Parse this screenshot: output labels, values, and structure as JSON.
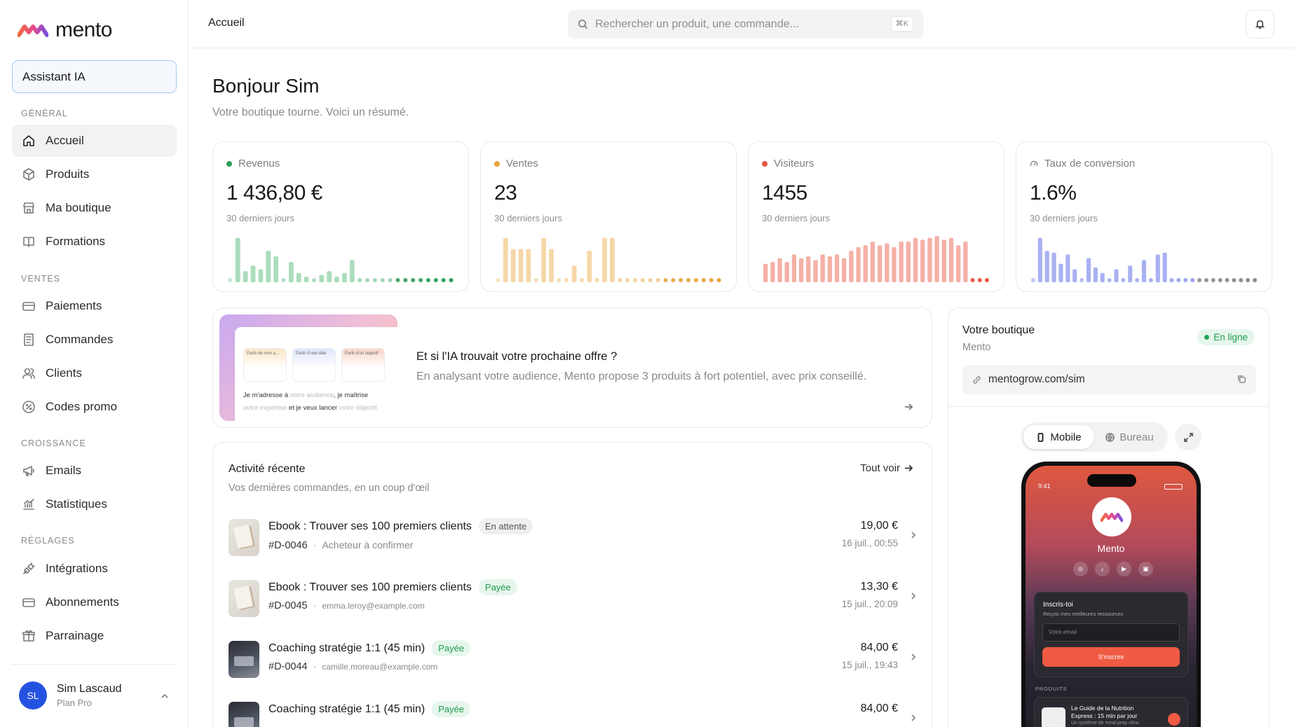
{
  "brand": {
    "name": "mento",
    "colors": {
      "pink": "#e84b8a",
      "orange": "#f16a3c",
      "purple": "#7a4de0"
    }
  },
  "sidebar": {
    "ai_button": "Assistant IA",
    "sections": [
      {
        "label": "GÉNÉRAL",
        "items": [
          {
            "label": "Accueil",
            "icon": "home-icon",
            "active": true
          },
          {
            "label": "Produits",
            "icon": "box-icon"
          },
          {
            "label": "Ma boutique",
            "icon": "store-icon"
          },
          {
            "label": "Formations",
            "icon": "book-icon"
          }
        ]
      },
      {
        "label": "VENTES",
        "items": [
          {
            "label": "Paiements",
            "icon": "card-icon"
          },
          {
            "label": "Commandes",
            "icon": "receipt-icon"
          },
          {
            "label": "Clients",
            "icon": "users-icon"
          },
          {
            "label": "Codes promo",
            "icon": "percent-icon"
          }
        ]
      },
      {
        "label": "CROISSANCE",
        "items": [
          {
            "label": "Emails",
            "icon": "megaphone-icon"
          },
          {
            "label": "Statistiques",
            "icon": "chart-icon"
          }
        ]
      },
      {
        "label": "RÉGLAGES",
        "items": [
          {
            "label": "Intégrations",
            "icon": "plug-icon"
          },
          {
            "label": "Abonnements",
            "icon": "card-icon"
          },
          {
            "label": "Parrainage",
            "icon": "gift-icon"
          }
        ]
      }
    ],
    "user": {
      "initials": "SL",
      "name": "Sim Lascaud",
      "plan": "Plan Pro"
    }
  },
  "topbar": {
    "breadcrumb": "Accueil",
    "search_placeholder": "Rechercher un produit, une commande...",
    "shortcut": "⌘K"
  },
  "page": {
    "title": "Bonjour Sim",
    "subtitle": "Votre boutique tourne. Voici un résumé."
  },
  "kpis": [
    {
      "label": "Revenus",
      "value": "1 436,80 €",
      "period": "30 derniers jours",
      "color": "#2e9e5b",
      "bar_color": "#8fd0a6",
      "icon": "dot"
    },
    {
      "label": "Ventes",
      "value": "23",
      "period": "30 derniers jours",
      "color": "#e8a13a",
      "bar_color": "#f1c98a",
      "icon": "dot"
    },
    {
      "label": "Visiteurs",
      "value": "1455",
      "period": "30 derniers jours",
      "color": "#e8553f",
      "bar_color": "#f2958a",
      "icon": "dot"
    },
    {
      "label": "Taux de conversion",
      "value": "1.6%",
      "period": "30 derniers jours",
      "color": "#8a8a8a",
      "bar_color": "#8b97ef",
      "icon": "gauge-icon"
    }
  ],
  "chart_data": [
    {
      "type": "bar",
      "title": "Revenus",
      "values": [
        0,
        48,
        12,
        18,
        14,
        34,
        28,
        0,
        22,
        10,
        6,
        4,
        8,
        12,
        6,
        10,
        24,
        4,
        3,
        3,
        3,
        3,
        3,
        3,
        3,
        3,
        3,
        3,
        3,
        3
      ]
    },
    {
      "type": "bar",
      "title": "Ventes",
      "values": [
        0,
        48,
        36,
        36,
        36,
        0,
        48,
        36,
        0,
        4,
        18,
        0,
        34,
        0,
        48,
        48,
        0,
        3,
        3,
        3,
        3,
        3,
        3,
        3,
        3,
        3,
        3,
        3,
        3,
        3
      ]
    },
    {
      "type": "bar",
      "title": "Visiteurs",
      "values": [
        20,
        22,
        26,
        22,
        30,
        26,
        28,
        24,
        30,
        28,
        30,
        26,
        34,
        38,
        40,
        44,
        40,
        42,
        38,
        44,
        44,
        48,
        46,
        48,
        50,
        46,
        48,
        40,
        44,
        4,
        4,
        4
      ]
    },
    {
      "type": "bar",
      "title": "Taux de conversion",
      "values": [
        5,
        48,
        34,
        32,
        20,
        30,
        14,
        0,
        26,
        16,
        10,
        5,
        14,
        4,
        18,
        5,
        24,
        4,
        30,
        32,
        4,
        4,
        4,
        4,
        4,
        4,
        4,
        4,
        4,
        4,
        4,
        4,
        4
      ]
    }
  ],
  "banner": {
    "title": "Et si l'IA trouvait votre prochaine offre ?",
    "text": "En analysant votre audience, Mento propose 3 produits à fort potentiel, avec prix conseillé.",
    "illustration": {
      "tiles": [
        "Partir de mon a...",
        "Partir d'une idée",
        "Partir d'un objectif"
      ],
      "line1a": "Je m'adresse à",
      "line1b": "votre audience",
      "line1c": ", je maîtrise",
      "line2a": "votre expertise",
      "line2b": " et je veux lancer ",
      "line2c": "votre objectif."
    }
  },
  "activity": {
    "title": "Activité récente",
    "subtitle": "Vos dernières commandes, en un coup d'œil",
    "see_all": "Tout voir",
    "rows": [
      {
        "product": "Ebook : Trouver ses 100 premiers clients",
        "status": "En attente",
        "status_type": "wait",
        "id": "#D-0046",
        "buyer": "Acheteur à confirmer",
        "amount": "19,00 €",
        "date": "16 juil., 00:55",
        "thumb": "book"
      },
      {
        "product": "Ebook : Trouver ses 100 premiers clients",
        "status": "Payée",
        "status_type": "paid",
        "id": "#D-0045",
        "buyer": "emma.leroy@example.com",
        "amount": "13,30 €",
        "date": "15 juil., 20:09",
        "thumb": "book"
      },
      {
        "product": "Coaching stratégie 1:1 (45 min)",
        "status": "Payée",
        "status_type": "paid",
        "id": "#D-0044",
        "buyer": "camille.moreau@example.com",
        "amount": "84,00 €",
        "date": "15 juil., 19:43",
        "thumb": "coach"
      },
      {
        "product": "Coaching stratégie 1:1 (45 min)",
        "status": "Payée",
        "status_type": "paid",
        "id": "",
        "buyer": "",
        "amount": "84,00 €",
        "date": "",
        "thumb": "coach"
      }
    ]
  },
  "shop": {
    "title": "Votre boutique",
    "name": "Mento",
    "status": "En ligne",
    "url": "mentogrow.com/sim",
    "toggle": {
      "mobile": "Mobile",
      "desktop": "Bureau"
    },
    "phone": {
      "time": "9:41",
      "name": "Mento",
      "form_title": "Inscris-toi",
      "form_sub": "Reçois mes meilleures ressources",
      "email_placeholder": "Votre email",
      "cta": "S'inscrire",
      "products_label": "PRODUITS",
      "product_title": "Le Guide de la Nutrition Express : 15 min par jour",
      "product_sub": "Un système de meal-prep ultra-"
    }
  }
}
